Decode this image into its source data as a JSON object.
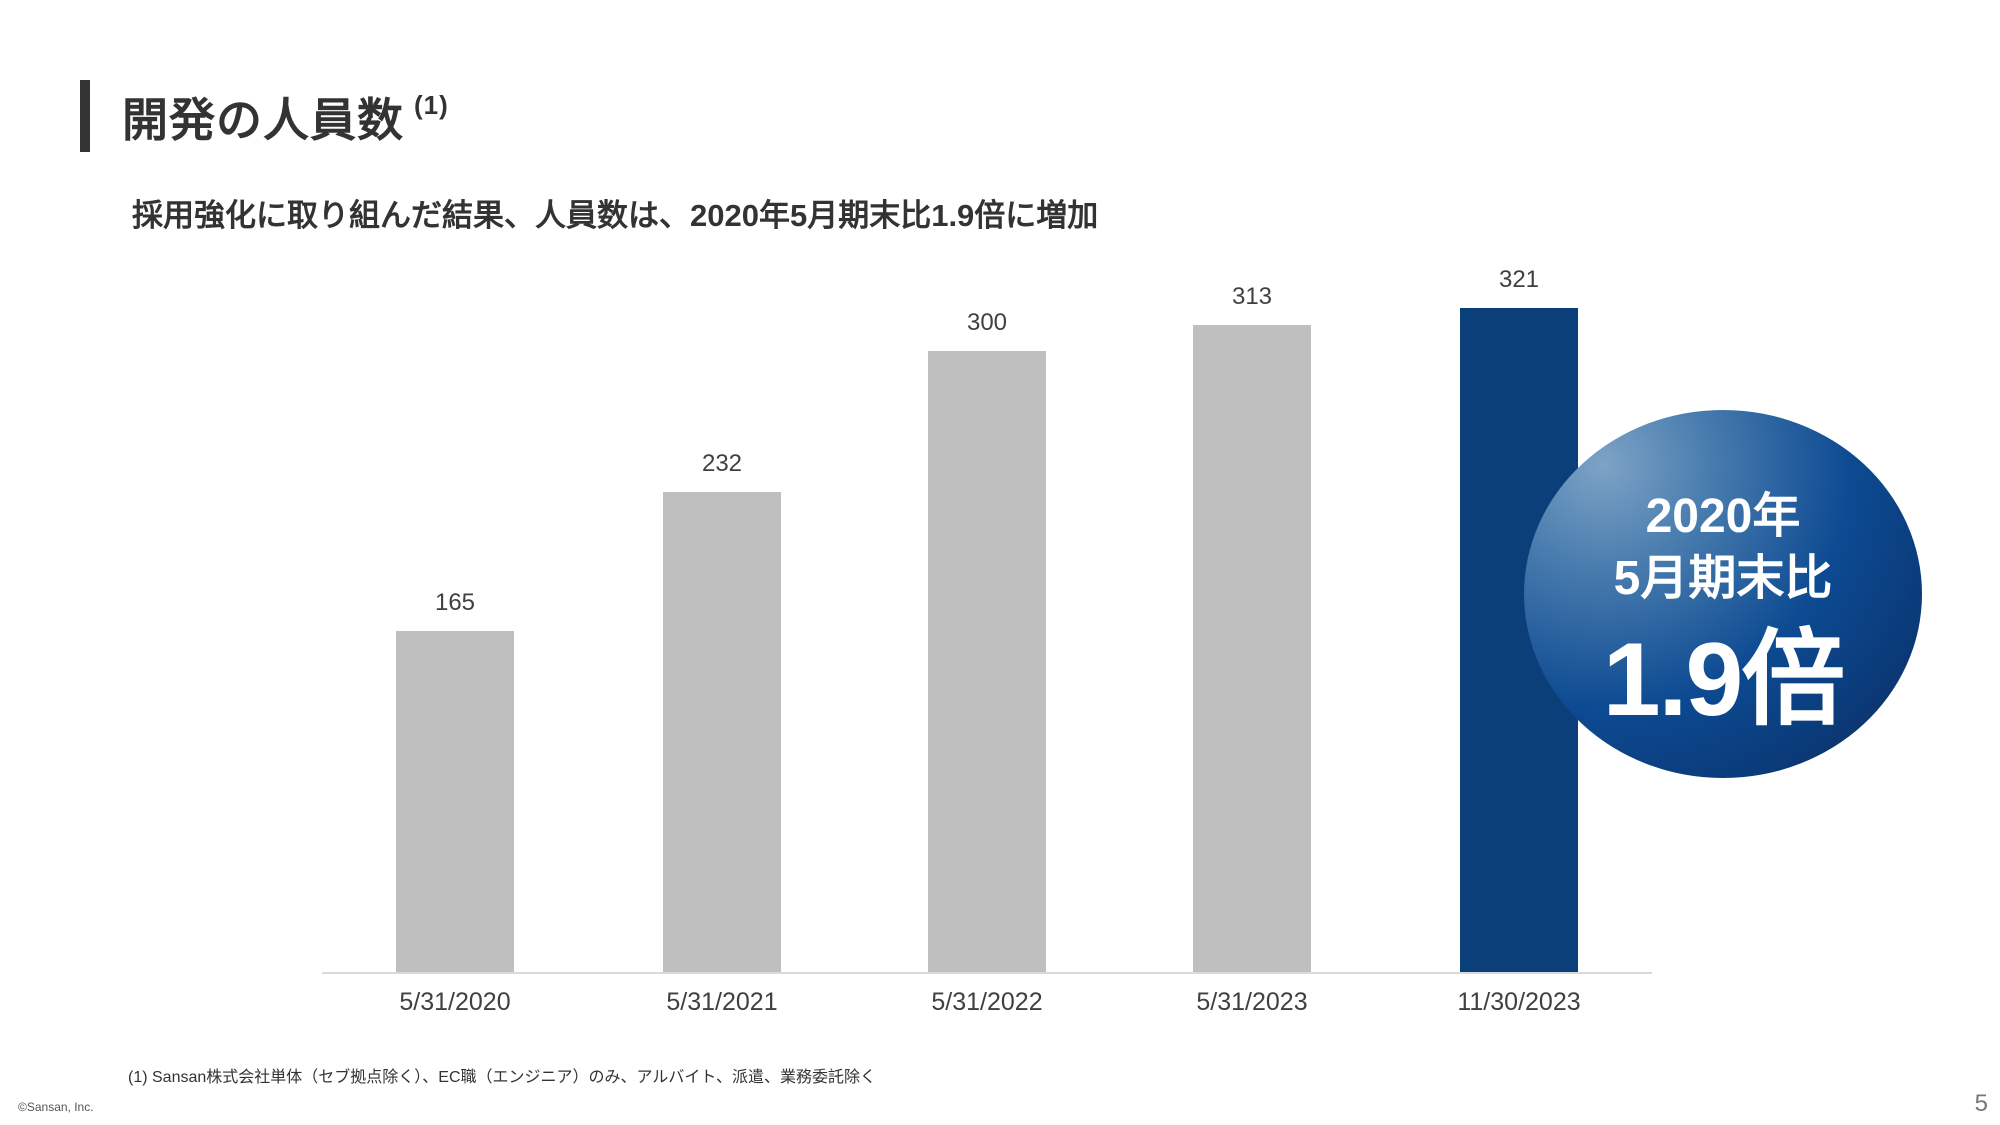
{
  "header": {
    "title": "開発の人員数",
    "title_note": "(1)",
    "subtitle": "採用強化に取り組んだ結果、人員数は、2020年5月期末比1.9倍に増加"
  },
  "chart_data": {
    "type": "bar",
    "title": "開発の人員数",
    "categories": [
      "5/31/2020",
      "5/31/2021",
      "5/31/2022",
      "5/31/2023",
      "11/30/2023"
    ],
    "values": [
      165,
      232,
      300,
      313,
      321
    ],
    "value_labels": [
      "165",
      "232",
      "300",
      "313",
      "321"
    ],
    "colors": [
      "#bfbfbf",
      "#bfbfbf",
      "#bfbfbf",
      "#bfbfbf",
      "#0a3f7a"
    ],
    "highlight_index": 4,
    "xlabel": "",
    "ylabel": "",
    "ylim": [
      0,
      340
    ],
    "grid": false,
    "legend": "none",
    "annotation": {
      "line1": "2020年",
      "line2": "5月期末比",
      "line3": "1.9倍"
    }
  },
  "footer": {
    "footnote": "(1)  Sansan株式会社単体（セブ拠点除く）、EC職（エンジニア）のみ、アルバイト、派遣、業務委託除く",
    "copyright": "©Sansan, Inc.",
    "page_number": "5"
  },
  "colors": {
    "bar_default": "#bfbfbf",
    "bar_highlight": "#0a3f7a",
    "text": "#333333"
  }
}
